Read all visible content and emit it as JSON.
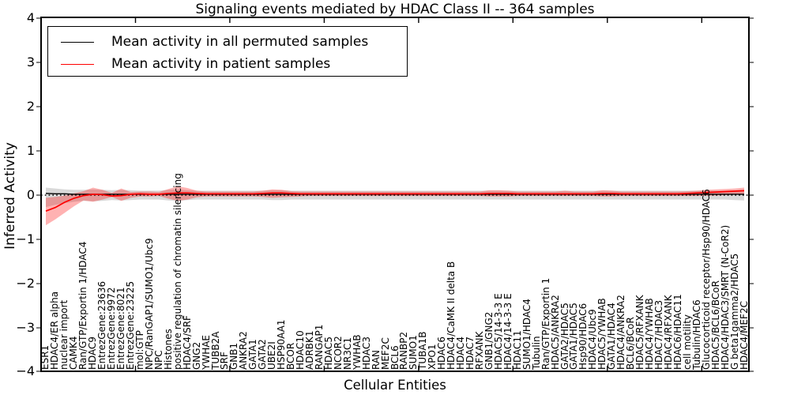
{
  "title": "Signaling events mediated by HDAC Class II -- 364 samples",
  "axes": {
    "xlabel": "Cellular Entities",
    "ylabel": "Inferred Activity",
    "ytick_labels": [
      "4",
      "3",
      "2",
      "1",
      "0",
      "−1",
      "−2",
      "−3",
      "−4"
    ],
    "ytick_values": [
      4,
      3,
      2,
      1,
      0,
      -1,
      -2,
      -3,
      -4
    ],
    "ylim": [
      -4,
      4
    ]
  },
  "legend": {
    "position": "upper left",
    "items": [
      {
        "label": "Mean activity in all permuted samples",
        "color": "#000000"
      },
      {
        "label": "Mean activity in patient samples",
        "color": "#ff0000"
      }
    ]
  },
  "colors": {
    "permuted_line": "#000000",
    "patient_line": "#ff0000",
    "permuted_band": "#d9d9d9",
    "patient_band_fill": "#ff0000",
    "patient_band_opacity": 0.3,
    "zero_line": "#000000",
    "frame": "#000000"
  },
  "chart_data": {
    "type": "line",
    "title": "Signaling events mediated by HDAC Class II -- 364 samples",
    "xlabel": "Cellular Entities",
    "ylabel": "Inferred Activity",
    "ylim": [
      -4,
      4
    ],
    "grid": false,
    "legend_position": "upper left",
    "categories": [
      "ESR1",
      "HDAC4/ER alpha",
      "nuclear import",
      "CAMK4",
      "Ran/GTP/Exportin 1/HDAC4",
      "HDAC9",
      "EntrezGene:23636",
      "EntrezGene:9972",
      "EntrezGene:8021",
      "EntrezGene:23225",
      "mol:GTP",
      "NPC/RanGAP1/SUMO1/Ubc9",
      "NPC",
      "Histones",
      "positive regulation of chromatin silencing",
      "HDAC4/SRF",
      "GNG2",
      "YWHAE",
      "TUBB2A",
      "SRF",
      "GNB1",
      "ANKRA2",
      "GATA1",
      "GATA2",
      "UBE2I",
      "HSP90AA1",
      "BCOR",
      "HDAC10",
      "ADRBK1",
      "RANGAP1",
      "HDAC5",
      "NCOR2",
      "NR3C1",
      "YWHAB",
      "HDAC3",
      "RAN",
      "MEF2C",
      "BCL6",
      "RANBP2",
      "SUMO1",
      "TUBA1B",
      "XPO1",
      "HDAC6",
      "HDAC4/CaMK II delta B",
      "HDAC4",
      "HDAC7",
      "RFXANK",
      "GNB1/GNG2",
      "HDAC5/14-3-3 E",
      "HDAC4/14-3-3 E",
      "HDAC11",
      "SUMO1/HDAC4",
      "Tubulin",
      "Ran/GTP/Exportin 1",
      "HDAC5/ANKRA2",
      "GATA2/HDAC5",
      "GATA1/HDAC5",
      "Hsp90/HDAC6",
      "HDAC4/Ubc9",
      "HDAC5/YWHAB",
      "GATA1/HDAC4",
      "HDAC4/ANKRA2",
      "BCL6/BCoR",
      "HDAC5/RFXANK",
      "HDAC4/YWHAB",
      "HDAC7/HDAC3",
      "HDAC4/RFXANK",
      "HDAC6/HDAC11",
      "cell motility",
      "Tubulin/HDAC6",
      "Glucocorticoid receptor/Hsp90/HDAC6",
      "HDAC5/BCL6/BCoR",
      "HDAC4/HDAC3/SMRT (N-CoR2)",
      "G beta1gamma2/HDAC5",
      "HDAC4/MEF2C"
    ],
    "series": [
      {
        "name": "Mean activity in all permuted samples",
        "color": "#000000",
        "values": [
          0.04,
          0.03,
          0.03,
          0.02,
          0.02,
          0.02,
          0.02,
          0.02,
          0.02,
          0.02,
          0.02,
          0.02,
          0.02,
          0.02,
          0.02,
          0.02,
          0.02,
          0.02,
          0.02,
          0.02,
          0.02,
          0.02,
          0.02,
          0.02,
          0.02,
          0.02,
          0.02,
          0.02,
          0.02,
          0.02,
          0.02,
          0.02,
          0.02,
          0.02,
          0.02,
          0.02,
          0.02,
          0.02,
          0.02,
          0.02,
          0.02,
          0.02,
          0.02,
          0.02,
          0.02,
          0.02,
          0.02,
          0.02,
          0.02,
          0.02,
          0.02,
          0.02,
          0.02,
          0.02,
          0.02,
          0.02,
          0.02,
          0.02,
          0.02,
          0.02,
          0.02,
          0.02,
          0.02,
          0.02,
          0.02,
          0.02,
          0.02,
          0.02,
          0.02,
          0.02,
          0.02,
          0.02,
          0.02,
          0.02,
          0.02
        ],
        "band_low": [
          -0.27,
          -0.22,
          -0.18,
          -0.15,
          -0.13,
          -0.14,
          -0.13,
          -0.11,
          -0.12,
          -0.11,
          -0.1,
          -0.1,
          -0.1,
          -0.12,
          -0.13,
          -0.11,
          -0.1,
          -0.1,
          -0.1,
          -0.1,
          -0.1,
          -0.1,
          -0.1,
          -0.1,
          -0.11,
          -0.11,
          -0.1,
          -0.1,
          -0.1,
          -0.1,
          -0.1,
          -0.1,
          -0.1,
          -0.1,
          -0.1,
          -0.1,
          -0.1,
          -0.1,
          -0.1,
          -0.1,
          -0.1,
          -0.1,
          -0.1,
          -0.1,
          -0.1,
          -0.1,
          -0.1,
          -0.1,
          -0.1,
          -0.1,
          -0.1,
          -0.1,
          -0.1,
          -0.1,
          -0.1,
          -0.1,
          -0.1,
          -0.1,
          -0.1,
          -0.1,
          -0.1,
          -0.1,
          -0.1,
          -0.1,
          -0.1,
          -0.1,
          -0.1,
          -0.1,
          -0.1,
          -0.1,
          -0.1,
          -0.1,
          -0.1,
          -0.11,
          -0.12
        ],
        "band_high": [
          0.17,
          0.15,
          0.13,
          0.12,
          0.12,
          0.13,
          0.12,
          0.11,
          0.12,
          0.11,
          0.1,
          0.1,
          0.1,
          0.12,
          0.13,
          0.11,
          0.1,
          0.1,
          0.1,
          0.1,
          0.1,
          0.1,
          0.1,
          0.1,
          0.11,
          0.11,
          0.1,
          0.1,
          0.1,
          0.1,
          0.1,
          0.1,
          0.1,
          0.1,
          0.1,
          0.1,
          0.1,
          0.1,
          0.1,
          0.1,
          0.1,
          0.1,
          0.1,
          0.1,
          0.1,
          0.1,
          0.1,
          0.1,
          0.1,
          0.1,
          0.1,
          0.1,
          0.1,
          0.1,
          0.1,
          0.1,
          0.1,
          0.1,
          0.1,
          0.1,
          0.1,
          0.1,
          0.1,
          0.1,
          0.1,
          0.1,
          0.1,
          0.1,
          0.1,
          0.1,
          0.1,
          0.1,
          0.1,
          0.11,
          0.12
        ]
      },
      {
        "name": "Mean activity in patient samples",
        "color": "#ff0000",
        "values": [
          -0.36,
          -0.28,
          -0.16,
          -0.07,
          -0.01,
          0.02,
          0.01,
          -0.02,
          -0.01,
          0.02,
          0.03,
          0.02,
          0.02,
          0.04,
          0.05,
          0.05,
          0.04,
          0.03,
          0.03,
          0.03,
          0.03,
          0.03,
          0.03,
          0.04,
          0.05,
          0.05,
          0.04,
          0.03,
          0.03,
          0.03,
          0.03,
          0.03,
          0.03,
          0.03,
          0.03,
          0.03,
          0.03,
          0.03,
          0.03,
          0.03,
          0.03,
          0.03,
          0.03,
          0.03,
          0.03,
          0.03,
          0.03,
          0.04,
          0.04,
          0.04,
          0.03,
          0.03,
          0.03,
          0.03,
          0.03,
          0.03,
          0.03,
          0.03,
          0.03,
          0.04,
          0.04,
          0.03,
          0.03,
          0.03,
          0.03,
          0.03,
          0.03,
          0.03,
          0.04,
          0.05,
          0.06,
          0.07,
          0.08,
          0.09,
          0.1
        ],
        "band_low": [
          -0.68,
          -0.55,
          -0.4,
          -0.25,
          -0.12,
          -0.15,
          -0.1,
          -0.04,
          -0.13,
          -0.06,
          -0.03,
          -0.03,
          -0.02,
          -0.08,
          -0.13,
          -0.1,
          -0.05,
          -0.03,
          -0.03,
          -0.03,
          -0.03,
          -0.03,
          -0.03,
          -0.04,
          -0.06,
          -0.05,
          -0.04,
          -0.03,
          -0.02,
          -0.02,
          -0.02,
          -0.02,
          -0.02,
          -0.02,
          -0.02,
          -0.02,
          -0.02,
          -0.02,
          -0.02,
          -0.02,
          -0.02,
          -0.02,
          -0.02,
          -0.02,
          -0.02,
          -0.02,
          -0.02,
          -0.03,
          -0.03,
          -0.03,
          -0.02,
          -0.02,
          -0.02,
          -0.02,
          -0.02,
          -0.02,
          -0.02,
          -0.02,
          -0.02,
          -0.03,
          -0.03,
          -0.02,
          -0.02,
          -0.02,
          -0.02,
          -0.02,
          -0.02,
          -0.02,
          -0.02,
          -0.02,
          -0.01,
          -0.01,
          0.0,
          0.01,
          0.02
        ],
        "band_high": [
          -0.06,
          -0.04,
          -0.01,
          0.04,
          0.09,
          0.17,
          0.12,
          0.05,
          0.15,
          0.07,
          0.08,
          0.08,
          0.07,
          0.14,
          0.2,
          0.16,
          0.1,
          0.08,
          0.08,
          0.08,
          0.08,
          0.08,
          0.08,
          0.1,
          0.13,
          0.12,
          0.09,
          0.08,
          0.08,
          0.08,
          0.08,
          0.08,
          0.08,
          0.08,
          0.08,
          0.08,
          0.08,
          0.08,
          0.08,
          0.08,
          0.08,
          0.08,
          0.08,
          0.08,
          0.08,
          0.08,
          0.08,
          0.11,
          0.11,
          0.1,
          0.08,
          0.08,
          0.08,
          0.08,
          0.08,
          0.1,
          0.08,
          0.08,
          0.08,
          0.11,
          0.1,
          0.08,
          0.08,
          0.08,
          0.08,
          0.08,
          0.08,
          0.08,
          0.09,
          0.1,
          0.12,
          0.13,
          0.14,
          0.15,
          0.17
        ]
      }
    ]
  }
}
